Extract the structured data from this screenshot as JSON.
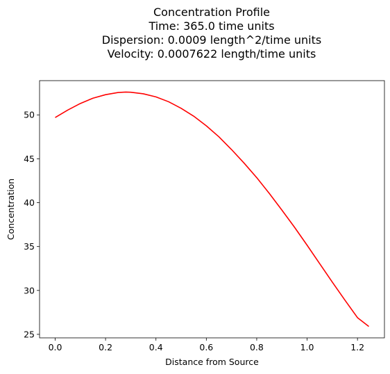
{
  "title_lines": [
    "Concentration Profile",
    "Time: 365.0 time units",
    "Dispersion: 0.0009 length^2/time units",
    "Velocity: 0.0007622 length/time units"
  ],
  "chart_data": {
    "type": "line",
    "title": "Concentration Profile\nTime: 365.0 time units\nDispersion: 0.0009 length^2/time units\nVelocity: 0.0007622 length/time units",
    "xlabel": "Distance from Source",
    "ylabel": "Concentration",
    "xlim": [
      -0.062,
      1.307
    ],
    "ylim": [
      24.6,
      53.9
    ],
    "xticks": [
      0.0,
      0.2,
      0.4,
      0.6,
      0.8,
      1.0,
      1.2
    ],
    "xtick_labels": [
      "0.0",
      "0.2",
      "0.4",
      "0.6",
      "0.8",
      "1.0",
      "1.2"
    ],
    "yticks": [
      25,
      30,
      35,
      40,
      45,
      50
    ],
    "ytick_labels": [
      "25",
      "30",
      "35",
      "40",
      "45",
      "50"
    ],
    "grid": false,
    "series": [
      {
        "color": "#ff0000",
        "x": [
          0.0,
          0.05,
          0.1,
          0.15,
          0.2,
          0.25,
          0.28,
          0.3,
          0.35,
          0.4,
          0.45,
          0.5,
          0.55,
          0.6,
          0.65,
          0.7,
          0.75,
          0.8,
          0.85,
          0.9,
          0.95,
          1.0,
          1.05,
          1.1,
          1.15,
          1.2,
          1.245
        ],
        "y": [
          49.7,
          50.55,
          51.3,
          51.9,
          52.3,
          52.55,
          52.6,
          52.58,
          52.4,
          52.05,
          51.5,
          50.75,
          49.85,
          48.75,
          47.5,
          46.05,
          44.5,
          42.85,
          41.05,
          39.15,
          37.2,
          35.15,
          33.05,
          30.95,
          28.9,
          26.9,
          25.9
        ]
      }
    ]
  }
}
